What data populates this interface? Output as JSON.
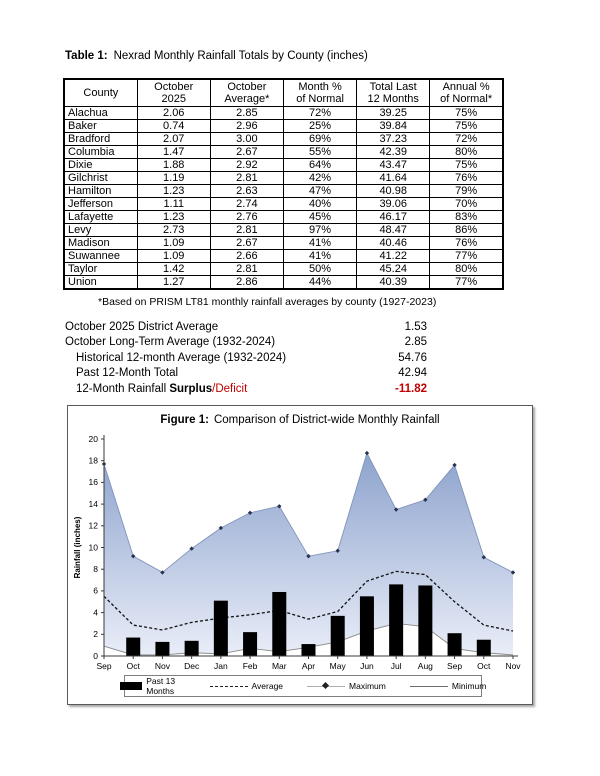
{
  "table_section": {
    "title_prefix": "Table 1:",
    "title_text": "Nexrad Monthly Rainfall Totals by County (inches)",
    "columns": [
      [
        "County",
        ""
      ],
      [
        "October",
        "2025"
      ],
      [
        "October",
        "Average*"
      ],
      [
        "Month %",
        "of Normal"
      ],
      [
        "Total Last",
        "12 Months"
      ],
      [
        "Annual %",
        "of Normal*"
      ]
    ],
    "rows": [
      {
        "county": "Alachua",
        "values": [
          "2.06",
          "2.85",
          "72%",
          "39.25",
          "75%"
        ]
      },
      {
        "county": "Baker",
        "values": [
          "0.74",
          "2.96",
          "25%",
          "39.84",
          "75%"
        ]
      },
      {
        "county": "Bradford",
        "values": [
          "2.07",
          "3.00",
          "69%",
          "37.23",
          "72%"
        ]
      },
      {
        "county": "Columbia",
        "values": [
          "1.47",
          "2.67",
          "55%",
          "42.39",
          "80%"
        ]
      },
      {
        "county": "Dixie",
        "values": [
          "1.88",
          "2.92",
          "64%",
          "43.47",
          "75%"
        ]
      },
      {
        "county": "Gilchrist",
        "values": [
          "1.19",
          "2.81",
          "42%",
          "41.64",
          "76%"
        ]
      },
      {
        "county": "Hamilton",
        "values": [
          "1.23",
          "2.63",
          "47%",
          "40.98",
          "79%"
        ]
      },
      {
        "county": "Jefferson",
        "values": [
          "1.11",
          "2.74",
          "40%",
          "39.06",
          "70%"
        ]
      },
      {
        "county": "Lafayette",
        "values": [
          "1.23",
          "2.76",
          "45%",
          "46.17",
          "83%"
        ]
      },
      {
        "county": "Levy",
        "values": [
          "2.73",
          "2.81",
          "97%",
          "48.47",
          "86%"
        ]
      },
      {
        "county": "Madison",
        "values": [
          "1.09",
          "2.67",
          "41%",
          "40.46",
          "76%"
        ]
      },
      {
        "county": "Suwannee",
        "values": [
          "1.09",
          "2.66",
          "41%",
          "41.22",
          "77%"
        ]
      },
      {
        "county": "Taylor",
        "values": [
          "1.42",
          "2.81",
          "50%",
          "45.24",
          "80%"
        ]
      },
      {
        "county": "Union",
        "values": [
          "1.27",
          "2.86",
          "44%",
          "40.39",
          "77%"
        ]
      }
    ],
    "footnote": "*Based on PRISM LT81 monthly rainfall averages by county (1927-2023)"
  },
  "summary": {
    "deficit_color": "#c00000",
    "lines": [
      {
        "parts": [
          {
            "text": "October 2025 District Average",
            "style": "normal"
          }
        ],
        "value": "1.53",
        "indent": false
      },
      {
        "parts": [
          {
            "text": "October Long-Term Average (1932-2024)",
            "style": "normal"
          }
        ],
        "value": "2.85",
        "indent": false
      },
      {
        "parts": [
          {
            "text": "Historical 12-month Average (1932-2024)",
            "style": "normal"
          }
        ],
        "value": "54.76",
        "indent": true
      },
      {
        "parts": [
          {
            "text": "Past 12-Month Total",
            "style": "normal"
          }
        ],
        "value": "42.94",
        "indent": true
      },
      {
        "parts": [
          {
            "text": "12-Month Rainfall ",
            "style": "normal"
          },
          {
            "text": "Surplus",
            "style": "bold"
          },
          {
            "text": "/Deficit",
            "style": "red"
          }
        ],
        "value": "-11.82",
        "value_bold": true,
        "value_color": "#c00000",
        "indent": true
      }
    ]
  },
  "figure": {
    "title_prefix": "Figure 1:",
    "title_text": "Comparison of District-wide Monthly Rainfall"
  },
  "chart_data": {
    "type": "combo",
    "title": "Comparison of District-wide Monthly Rainfall",
    "ylabel": "Rainfall (inches)",
    "ylim": [
      0,
      20
    ],
    "ytick_step": 2,
    "grid": false,
    "legend_position": "bottom",
    "categories": [
      "Sep",
      "Oct",
      "Nov",
      "Dec",
      "Jan",
      "Feb",
      "Mar",
      "Apr",
      "May",
      "Jun",
      "Jul",
      "Aug",
      "Sep",
      "Oct",
      "Nov"
    ],
    "band_fill_between": [
      "Minimum",
      "Maximum"
    ],
    "series": [
      {
        "name": "Past 13 Months",
        "type": "bar",
        "color": "#000000",
        "values": [
          null,
          1.7,
          1.3,
          1.4,
          5.1,
          2.2,
          5.9,
          1.1,
          3.7,
          5.5,
          6.6,
          6.5,
          2.1,
          1.5,
          null
        ]
      },
      {
        "name": "Average",
        "type": "line-dashed",
        "color": "#111111",
        "values": [
          5.5,
          2.85,
          2.4,
          3.1,
          3.5,
          3.8,
          4.2,
          3.4,
          4.1,
          6.9,
          7.8,
          7.5,
          5.0,
          2.85,
          2.3
        ]
      },
      {
        "name": "Maximum",
        "type": "area-line",
        "color_line": "#8093ba",
        "fill_top": "#8da3cd",
        "fill_bottom": "#e9edf8",
        "marker_color": "#26324f",
        "values": [
          17.7,
          9.2,
          7.7,
          9.9,
          11.8,
          13.2,
          13.8,
          9.2,
          9.7,
          18.7,
          13.5,
          14.4,
          17.6,
          9.1,
          7.7
        ]
      },
      {
        "name": "Minimum",
        "type": "line",
        "color": "#8a8a8a",
        "values": [
          0.9,
          0.1,
          0.1,
          0.3,
          0.2,
          0.7,
          0.4,
          0.8,
          1.3,
          2.3,
          3.0,
          2.7,
          0.7,
          0.3,
          0.1
        ]
      }
    ]
  }
}
